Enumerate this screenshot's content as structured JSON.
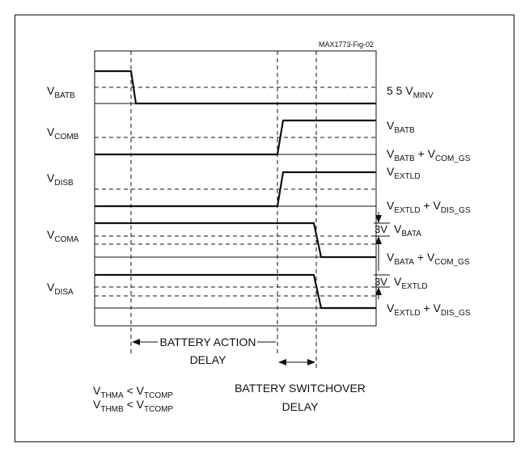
{
  "figure_id": "MAX1773-Fig-02",
  "signals": [
    [
      "V",
      "BATB"
    ],
    [
      "V",
      "COMB"
    ],
    [
      "V",
      "DISB"
    ],
    [
      "V",
      "COMA"
    ],
    [
      "V",
      "DISA"
    ]
  ],
  "levels": [
    [
      "5 5 V",
      "MINV"
    ],
    [
      "V",
      "BATB"
    ],
    [
      "V",
      "BATB",
      " + V",
      "COM_GS"
    ],
    [
      "V",
      "EXTLD"
    ],
    [
      "V",
      "EXTLD",
      " + V",
      "DIS_GS"
    ],
    [
      "V",
      "BATA"
    ],
    [
      "V",
      "BATA",
      " + V",
      "COM_GS"
    ],
    [
      "V",
      "EXTLD"
    ],
    [
      "V",
      "EXTLD",
      " + V",
      "DIS_GS"
    ]
  ],
  "step_labels": [
    "3V",
    "3V"
  ],
  "delays": [
    [
      "BATTERY ACTION",
      "DELAY"
    ],
    [
      "BATTERY SWITCHOVER",
      "DELAY"
    ]
  ],
  "conditions": [
    [
      "V",
      "THMA",
      " < V",
      "TCOMP"
    ],
    [
      "V",
      "THMB",
      " < V",
      "TCOMP"
    ]
  ]
}
